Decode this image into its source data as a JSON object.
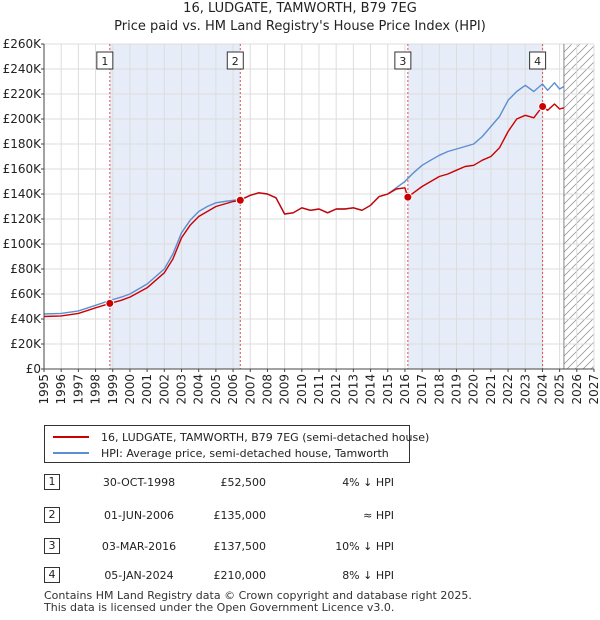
{
  "chart_data": {
    "type": "line",
    "title": "16, LUDGATE, TAMWORTH, B79 7EG",
    "subtitle": "Price paid vs. HM Land Registry's House Price Index (HPI)",
    "xlim": [
      1995,
      2027
    ],
    "ylim": [
      0,
      260000
    ],
    "x_ticks": [
      "1995",
      "1996",
      "1997",
      "1998",
      "1999",
      "2000",
      "2001",
      "2002",
      "2003",
      "2004",
      "2005",
      "2006",
      "2007",
      "2008",
      "2009",
      "2010",
      "2011",
      "2012",
      "2013",
      "2014",
      "2015",
      "2016",
      "2017",
      "2018",
      "2019",
      "2020",
      "2021",
      "2022",
      "2023",
      "2024",
      "2025",
      "2026",
      "2027"
    ],
    "y_ticks": [
      {
        "value": 0,
        "label": "£0"
      },
      {
        "value": 20000,
        "label": "£20K"
      },
      {
        "value": 40000,
        "label": "£40K"
      },
      {
        "value": 60000,
        "label": "£60K"
      },
      {
        "value": 80000,
        "label": "£80K"
      },
      {
        "value": 100000,
        "label": "£100K"
      },
      {
        "value": 120000,
        "label": "£120K"
      },
      {
        "value": 140000,
        "label": "£140K"
      },
      {
        "value": 160000,
        "label": "£160K"
      },
      {
        "value": 180000,
        "label": "£180K"
      },
      {
        "value": 200000,
        "label": "£200K"
      },
      {
        "value": 220000,
        "label": "£220K"
      },
      {
        "value": 240000,
        "label": "£240K"
      },
      {
        "value": 260000,
        "label": "£260K"
      }
    ],
    "grid": true,
    "data_end_year": 2025.25,
    "series": [
      {
        "name": "16, LUDGATE, TAMWORTH, B79 7EG (semi-detached house)",
        "color": "#cc0000",
        "points": [
          [
            1995.0,
            42000
          ],
          [
            1996.0,
            42500
          ],
          [
            1997.0,
            44500
          ],
          [
            1998.0,
            49000
          ],
          [
            1998.83,
            52500
          ],
          [
            1999.5,
            55000
          ],
          [
            2000.0,
            57500
          ],
          [
            2001.0,
            65000
          ],
          [
            2002.0,
            77000
          ],
          [
            2002.5,
            88000
          ],
          [
            2003.0,
            105000
          ],
          [
            2003.5,
            115000
          ],
          [
            2004.0,
            122000
          ],
          [
            2004.5,
            126000
          ],
          [
            2005.0,
            130000
          ],
          [
            2005.5,
            132000
          ],
          [
            2006.0,
            134000
          ],
          [
            2006.42,
            135000
          ],
          [
            2007.0,
            139000
          ],
          [
            2007.5,
            141000
          ],
          [
            2008.0,
            140000
          ],
          [
            2008.5,
            137000
          ],
          [
            2009.0,
            124000
          ],
          [
            2009.5,
            125000
          ],
          [
            2010.0,
            129000
          ],
          [
            2010.5,
            127000
          ],
          [
            2011.0,
            128000
          ],
          [
            2011.5,
            125000
          ],
          [
            2012.0,
            128000
          ],
          [
            2012.5,
            128000
          ],
          [
            2013.0,
            129000
          ],
          [
            2013.5,
            127000
          ],
          [
            2014.0,
            131000
          ],
          [
            2014.5,
            138000
          ],
          [
            2015.0,
            140000
          ],
          [
            2015.5,
            144000
          ],
          [
            2016.0,
            145000
          ],
          [
            2016.17,
            137500
          ],
          [
            2016.5,
            141000
          ],
          [
            2017.0,
            146000
          ],
          [
            2017.5,
            150000
          ],
          [
            2018.0,
            154000
          ],
          [
            2018.5,
            156000
          ],
          [
            2019.0,
            159000
          ],
          [
            2019.5,
            162000
          ],
          [
            2020.0,
            163000
          ],
          [
            2020.5,
            167000
          ],
          [
            2021.0,
            170000
          ],
          [
            2021.5,
            177000
          ],
          [
            2022.0,
            190000
          ],
          [
            2022.5,
            200000
          ],
          [
            2023.0,
            203000
          ],
          [
            2023.5,
            201000
          ],
          [
            2024.0,
            210000
          ],
          [
            2024.3,
            207000
          ],
          [
            2024.7,
            212000
          ],
          [
            2025.0,
            208000
          ],
          [
            2025.25,
            209000
          ]
        ]
      },
      {
        "name": "HPI: Average price, semi-detached house, Tamworth",
        "color": "#5b8fd1",
        "points": [
          [
            1995.0,
            44000
          ],
          [
            1996.0,
            44500
          ],
          [
            1997.0,
            46500
          ],
          [
            1998.0,
            51000
          ],
          [
            1998.83,
            54800
          ],
          [
            1999.5,
            57500
          ],
          [
            2000.0,
            60000
          ],
          [
            2001.0,
            68000
          ],
          [
            2002.0,
            80000
          ],
          [
            2002.5,
            92000
          ],
          [
            2003.0,
            109000
          ],
          [
            2003.5,
            119000
          ],
          [
            2004.0,
            126000
          ],
          [
            2004.5,
            130000
          ],
          [
            2005.0,
            133000
          ],
          [
            2005.5,
            134000
          ],
          [
            2006.0,
            135000
          ],
          [
            2006.42,
            135500
          ],
          [
            2007.0,
            139000
          ],
          [
            2007.5,
            141000
          ],
          [
            2008.0,
            140000
          ],
          [
            2008.5,
            137000
          ],
          [
            2009.0,
            124000
          ],
          [
            2009.5,
            125000
          ],
          [
            2010.0,
            129000
          ],
          [
            2010.5,
            127000
          ],
          [
            2011.0,
            128000
          ],
          [
            2011.5,
            125000
          ],
          [
            2012.0,
            128000
          ],
          [
            2012.5,
            128000
          ],
          [
            2013.0,
            129000
          ],
          [
            2013.5,
            127000
          ],
          [
            2014.0,
            131000
          ],
          [
            2014.5,
            138000
          ],
          [
            2015.0,
            140000
          ],
          [
            2015.5,
            145000
          ],
          [
            2016.0,
            150000
          ],
          [
            2016.17,
            152500
          ],
          [
            2016.5,
            157000
          ],
          [
            2017.0,
            163000
          ],
          [
            2017.5,
            167000
          ],
          [
            2018.0,
            171000
          ],
          [
            2018.5,
            174000
          ],
          [
            2019.0,
            176000
          ],
          [
            2019.5,
            178000
          ],
          [
            2020.0,
            180000
          ],
          [
            2020.5,
            186000
          ],
          [
            2021.0,
            194000
          ],
          [
            2021.5,
            202000
          ],
          [
            2022.0,
            215000
          ],
          [
            2022.5,
            222000
          ],
          [
            2023.0,
            227000
          ],
          [
            2023.5,
            222000
          ],
          [
            2024.0,
            228000
          ],
          [
            2024.3,
            223000
          ],
          [
            2024.7,
            229000
          ],
          [
            2025.0,
            224000
          ],
          [
            2025.25,
            226000
          ]
        ]
      }
    ],
    "sale_markers": [
      {
        "num": "1",
        "x": 1998.83,
        "y": 52500
      },
      {
        "num": "2",
        "x": 2006.42,
        "y": 135000
      },
      {
        "num": "3",
        "x": 2016.17,
        "y": 137500
      },
      {
        "num": "4",
        "x": 2024.01,
        "y": 210000
      }
    ]
  },
  "legend": {
    "property_label": "16, LUDGATE, TAMWORTH, B79 7EG (semi-detached house)",
    "hpi_label": "HPI: Average price, semi-detached house, Tamworth"
  },
  "sales": [
    {
      "num": "1",
      "date": "30-OCT-1998",
      "price": "£52,500",
      "delta": "4% ↓ HPI"
    },
    {
      "num": "2",
      "date": "01-JUN-2006",
      "price": "£135,000",
      "delta": "≈ HPI"
    },
    {
      "num": "3",
      "date": "03-MAR-2016",
      "price": "£137,500",
      "delta": "10% ↓ HPI"
    },
    {
      "num": "4",
      "date": "05-JAN-2024",
      "price": "£210,000",
      "delta": "8% ↓ HPI"
    }
  ],
  "footer": {
    "line1": "Contains HM Land Registry data © Crown copyright and database right 2025.",
    "line2": "This data is licensed under the Open Government Licence v3.0."
  }
}
